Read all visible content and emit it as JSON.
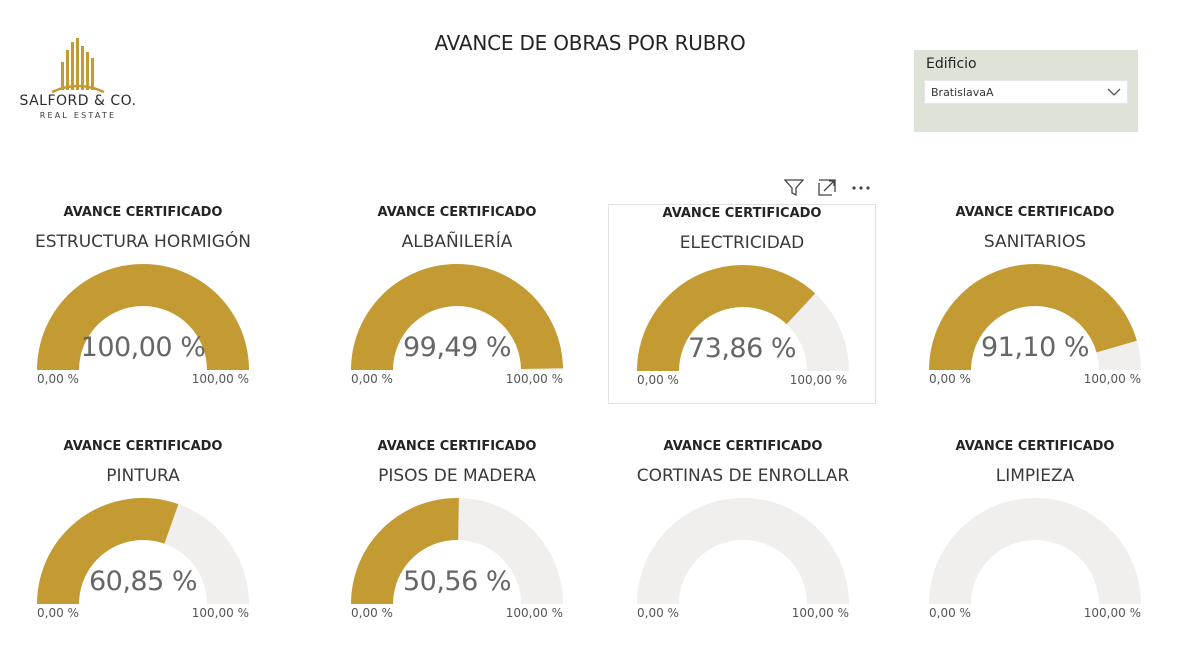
{
  "logo": {
    "name": "SALFORD & CO.",
    "sub": "REAL ESTATE"
  },
  "title": "AVANCE DE OBRAS POR RUBRO",
  "slicer": {
    "title": "Edificio",
    "value": "BratislavaA"
  },
  "colors": {
    "fill": "#c49a33",
    "track": "#f1efee",
    "slicer_bg": "#dde3d6"
  },
  "toolbar": [
    "filter-icon",
    "focus-mode-icon",
    "more-options-icon"
  ],
  "chart_data": {
    "type": "gauge",
    "min": 0,
    "max": 100,
    "gauges": [
      {
        "header": "AVANCE CERTIFICADO",
        "title": "ESTRUCTURA HORMIGÓN",
        "value": 100.0,
        "value_label": "100,00 %",
        "min_label": "0,00 %",
        "max_label": "100,00 %"
      },
      {
        "header": "AVANCE CERTIFICADO",
        "title": "ALBAÑILERÍA",
        "value": 99.49,
        "value_label": "99,49 %",
        "min_label": "0,00 %",
        "max_label": "100,00 %"
      },
      {
        "header": "AVANCE CERTIFICADO",
        "title": "ELECTRICIDAD",
        "value": 73.86,
        "value_label": "73,86 %",
        "min_label": "0,00 %",
        "max_label": "100,00 %"
      },
      {
        "header": "AVANCE CERTIFICADO",
        "title": "SANITARIOS",
        "value": 91.1,
        "value_label": "91,10 %",
        "min_label": "0,00 %",
        "max_label": "100,00 %"
      },
      {
        "header": "AVANCE CERTIFICADO",
        "title": "PINTURA",
        "value": 60.85,
        "value_label": "60,85 %",
        "min_label": "0,00 %",
        "max_label": "100,00 %"
      },
      {
        "header": "AVANCE CERTIFICADO",
        "title": "PISOS DE MADERA",
        "value": 50.56,
        "value_label": "50,56 %",
        "min_label": "0,00 %",
        "max_label": "100,00 %"
      },
      {
        "header": "AVANCE CERTIFICADO",
        "title": "CORTINAS DE ENROLLAR",
        "value": null,
        "value_label": "",
        "min_label": "0,00 %",
        "max_label": "100,00 %"
      },
      {
        "header": "AVANCE CERTIFICADO",
        "title": "LIMPIEZA",
        "value": null,
        "value_label": "",
        "min_label": "0,00 %",
        "max_label": "100,00 %"
      }
    ]
  }
}
